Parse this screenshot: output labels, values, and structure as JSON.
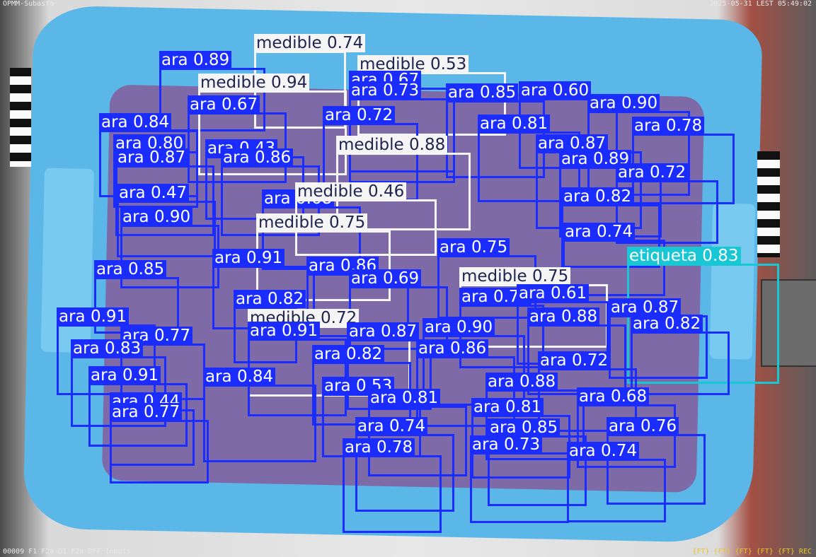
{
  "overlay": {
    "top_left": "OPMM-Subasta",
    "top_right": "2025-05-31 LEST 05:49:02",
    "bottom_left": "00009 F1 F2a-D1 F2a-DFF Inputs",
    "bottom_right": "{FT} {FT} {FT} {FT} {FT} REC"
  },
  "colors": {
    "ara": "#1b2cff",
    "medible": "#f5f5f5",
    "etiqueta": "#19c7d4"
  },
  "detections": [
    {
      "cls": "medible",
      "label": "medible 0.74"
    },
    {
      "cls": "ara",
      "label": "ara 0.89"
    },
    {
      "cls": "medible",
      "label": "medible 0.53"
    },
    {
      "cls": "ara",
      "label": "ara 0.67"
    },
    {
      "cls": "medible",
      "label": "medible 0.94"
    },
    {
      "cls": "ara",
      "label": "ara 0.73"
    },
    {
      "cls": "ara",
      "label": "ara 0.85"
    },
    {
      "cls": "ara",
      "label": "ara 0.60"
    },
    {
      "cls": "ara",
      "label": "ara 0.90"
    },
    {
      "cls": "ara",
      "label": "ara 0.67"
    },
    {
      "cls": "ara",
      "label": "ara 0.72"
    },
    {
      "cls": "ara",
      "label": "ara 0.84"
    },
    {
      "cls": "ara",
      "label": "ara 0.81"
    },
    {
      "cls": "ara",
      "label": "ara 0.78"
    },
    {
      "cls": "ara",
      "label": "ara 0.80"
    },
    {
      "cls": "medible",
      "label": "medible 0.88"
    },
    {
      "cls": "ara",
      "label": "ara 0.87"
    },
    {
      "cls": "ara",
      "label": "ara 0.43"
    },
    {
      "cls": "ara",
      "label": "ara 0.87"
    },
    {
      "cls": "ara",
      "label": "ara 0.86"
    },
    {
      "cls": "ara",
      "label": "ara 0.89"
    },
    {
      "cls": "ara",
      "label": "ara 0.72"
    },
    {
      "cls": "ara",
      "label": "ara 0.47"
    },
    {
      "cls": "ara",
      "label": "ara 0.68"
    },
    {
      "cls": "ara",
      "label": "ara 0.82"
    },
    {
      "cls": "medible",
      "label": "medible 0.46"
    },
    {
      "cls": "ara",
      "label": "ara 0.90"
    },
    {
      "cls": "medible",
      "label": "medible 0.75"
    },
    {
      "cls": "ara",
      "label": "ara 0.74"
    },
    {
      "cls": "ara",
      "label": "ara 0.75"
    },
    {
      "cls": "etiqueta",
      "label": "etiqueta 0.83"
    },
    {
      "cls": "ara",
      "label": "ara 0.91"
    },
    {
      "cls": "ara",
      "label": "ara 0.86"
    },
    {
      "cls": "ara",
      "label": "ara 0.85"
    },
    {
      "cls": "medible",
      "label": "medible 0.75"
    },
    {
      "cls": "ara",
      "label": "ara 0.69"
    },
    {
      "cls": "ara",
      "label": "ara 0.73"
    },
    {
      "cls": "ara",
      "label": "ara 0.61"
    },
    {
      "cls": "ara",
      "label": "ara 0.82"
    },
    {
      "cls": "ara",
      "label": "ara 0.91"
    },
    {
      "cls": "medible",
      "label": "medible 0.72"
    },
    {
      "cls": "ara",
      "label": "ara 0.88"
    },
    {
      "cls": "ara",
      "label": "ara 0.87"
    },
    {
      "cls": "ara",
      "label": "ara 0.82"
    },
    {
      "cls": "ara",
      "label": "ara 0.91"
    },
    {
      "cls": "ara",
      "label": "ara 0.87"
    },
    {
      "cls": "ara",
      "label": "ara 0.90"
    },
    {
      "cls": "ara",
      "label": "ara 0.77"
    },
    {
      "cls": "ara",
      "label": "ara 0.83"
    },
    {
      "cls": "ara",
      "label": "ara 0.82"
    },
    {
      "cls": "ara",
      "label": "ara 0.86"
    },
    {
      "cls": "ara",
      "label": "ara 0.72"
    },
    {
      "cls": "ara",
      "label": "ara 0.91"
    },
    {
      "cls": "ara",
      "label": "ara 0.84"
    },
    {
      "cls": "ara",
      "label": "ara 0.88"
    },
    {
      "cls": "ara",
      "label": "ara 0.53"
    },
    {
      "cls": "ara",
      "label": "ara 0.81"
    },
    {
      "cls": "ara",
      "label": "ara 0.68"
    },
    {
      "cls": "ara",
      "label": "ara 0.44"
    },
    {
      "cls": "ara",
      "label": "ara 0.77"
    },
    {
      "cls": "ara",
      "label": "ara 0.81"
    },
    {
      "cls": "ara",
      "label": "ara 0.74"
    },
    {
      "cls": "ara",
      "label": "ara 0.85"
    },
    {
      "cls": "ara",
      "label": "ara 0.76"
    },
    {
      "cls": "ara",
      "label": "ara 0.78"
    },
    {
      "cls": "ara",
      "label": "ara 0.73"
    },
    {
      "cls": "ara",
      "label": "ara 0.74"
    }
  ]
}
